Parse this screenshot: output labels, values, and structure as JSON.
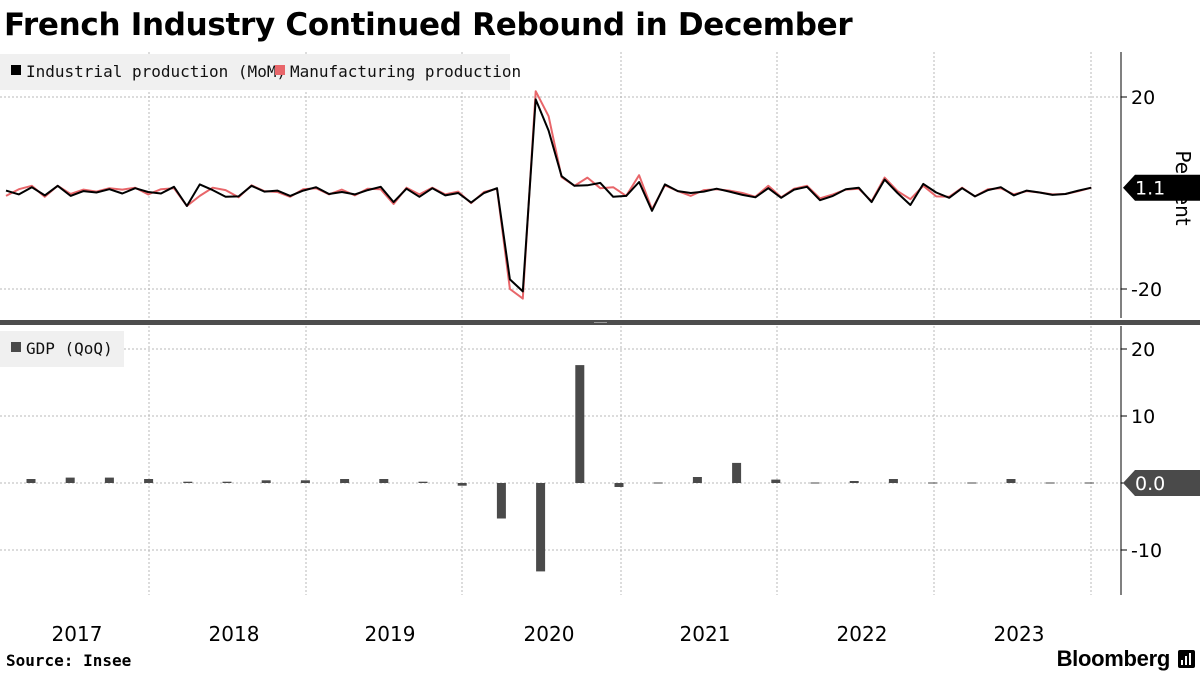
{
  "title": "French Industry Continued Rebound in December",
  "source": "Source: Insee",
  "brand": "Bloomberg",
  "brand_icon": "bloomberg-terminal-icon",
  "colors": {
    "industrial": "#000000",
    "manufacturing": "#e8666a",
    "gdp": "#4a4a4a",
    "grid": "#b8b8b8",
    "badge_top": "#000000",
    "badge_bottom": "#4a4a4a"
  },
  "top_panel": {
    "ylabel": "Percent",
    "last_value_label": "1.1",
    "legend": [
      "Industrial production (MoM)",
      "Manufacturing production"
    ]
  },
  "bottom_panel": {
    "last_value_label": "0.0",
    "legend": [
      "GDP (QoQ)"
    ]
  },
  "chart_data": [
    {
      "type": "line",
      "title": "",
      "ylabel": "Percent",
      "x_start": "2016-09",
      "x_end": "2023-12",
      "frequency": "monthly",
      "ylim": [
        -24,
        24
      ],
      "yticks": [
        -20,
        20
      ],
      "series": [
        {
          "name": "Industrial production (MoM)",
          "values": [
            0.5,
            -0.3,
            1.2,
            -0.5,
            1.5,
            -0.6,
            0.4,
            0.1,
            0.8,
            -0.1,
            1.0,
            0.2,
            -0.1,
            1.3,
            -2.7,
            1.8,
            0.6,
            -0.8,
            -0.7,
            1.5,
            0.3,
            0.5,
            -0.6,
            0.5,
            1.2,
            -0.2,
            0.2,
            -0.3,
            0.6,
            1.3,
            -1.9,
            0.9,
            -0.8,
            1.0,
            -0.5,
            0.0,
            -2.0,
            0.0,
            1.0,
            -18.0,
            -20.5,
            19.5,
            13.0,
            3.5,
            1.5,
            1.6,
            2.1,
            -0.8,
            -0.6,
            2.3,
            -3.7,
            1.8,
            0.4,
            0.0,
            0.3,
            0.9,
            0.3,
            -0.4,
            -0.9,
            1.0,
            -1.0,
            0.7,
            1.3,
            -1.5,
            -0.6,
            0.8,
            1.1,
            -1.9,
            2.8,
            0.0,
            -2.5,
            1.9,
            0.1,
            -1.0,
            1.0,
            -0.7,
            0.6,
            1.2,
            -0.5,
            0.5,
            0.1,
            -0.4,
            -0.2,
            0.5,
            1.1
          ]
        },
        {
          "name": "Manufacturing production",
          "values": [
            -0.6,
            0.8,
            1.5,
            -0.8,
            1.5,
            -0.2,
            0.7,
            0.3,
            1.0,
            0.7,
            1.1,
            -0.3,
            0.8,
            1.0,
            -2.7,
            -0.6,
            1.1,
            0.6,
            -0.9,
            1.6,
            0.4,
            0.2,
            -0.8,
            0.8,
            1.0,
            -0.3,
            0.7,
            -0.5,
            0.9,
            0.8,
            -2.3,
            1.1,
            -0.3,
            1.1,
            -0.3,
            0.3,
            -2.1,
            0.2,
            0.9,
            -20.0,
            -22.0,
            21.2,
            16.0,
            3.3,
            1.5,
            3.2,
            1.0,
            1.2,
            -0.6,
            3.7,
            -3.4,
            1.6,
            0.4,
            -0.6,
            0.6,
            0.8,
            0.5,
            0.0,
            -0.8,
            1.5,
            -0.9,
            0.9,
            1.5,
            -1.1,
            -0.3,
            0.7,
            0.9,
            -1.7,
            3.2,
            0.4,
            -1.3,
            1.5,
            -0.7,
            -0.8,
            1.1,
            -0.7,
            0.8,
            1.0,
            -0.3,
            0.4,
            0.1,
            -0.3,
            -0.2,
            0.4,
            1.1
          ]
        }
      ]
    },
    {
      "type": "bar",
      "title": "",
      "ylabel": "",
      "frequency": "quarterly",
      "ylim": [
        -16,
        23
      ],
      "yticks": [
        -10,
        0,
        10,
        20
      ],
      "categories": [
        "2016-Q4",
        "2017-Q1",
        "2017-Q2",
        "2017-Q3",
        "2017-Q4",
        "2018-Q1",
        "2018-Q2",
        "2018-Q3",
        "2018-Q4",
        "2019-Q1",
        "2019-Q2",
        "2019-Q3",
        "2019-Q4",
        "2020-Q1",
        "2020-Q2",
        "2020-Q3",
        "2020-Q4",
        "2021-Q1",
        "2021-Q2",
        "2021-Q3",
        "2021-Q4",
        "2022-Q1",
        "2022-Q2",
        "2022-Q3",
        "2022-Q4",
        "2023-Q1",
        "2023-Q2",
        "2023-Q3",
        "2023-Q4"
      ],
      "series": [
        {
          "name": "GDP (QoQ)",
          "values": [
            0.6,
            0.8,
            0.8,
            0.6,
            0.2,
            0.2,
            0.4,
            0.4,
            0.6,
            0.6,
            0.2,
            -0.4,
            -5.3,
            -13.2,
            17.6,
            -0.6,
            0.1,
            0.9,
            3.0,
            0.5,
            0.1,
            0.3,
            0.6,
            0.1,
            0.1,
            0.6,
            0.0,
            0.0,
            0.0
          ]
        }
      ]
    }
  ],
  "x_axis": {
    "ticks": [
      "2017",
      "2018",
      "2019",
      "2020",
      "2021",
      "2022",
      "2023"
    ]
  }
}
